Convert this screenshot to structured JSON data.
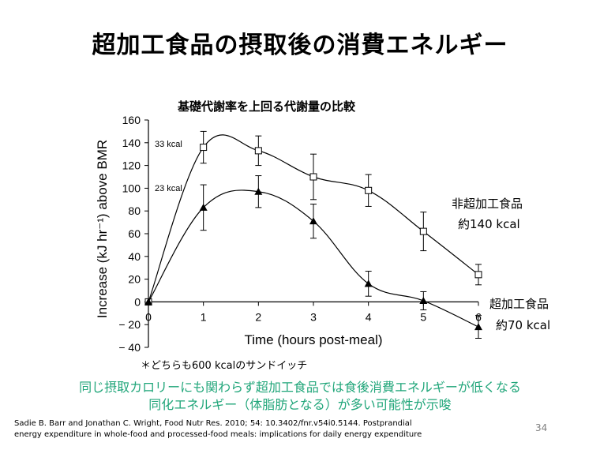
{
  "slide": {
    "title": "超加工食品の摂取後の消費エネルギー",
    "note": "＊どちらも600 kcalのサンドイッチ",
    "conclusion_line1": "同じ摂取カロリーにも関わらず超加工食品では食後消費エネルギーが低くなる",
    "conclusion_line2": "同化エネルギー（体脂肪となる）が多い可能性が示唆",
    "citation_line1": "Sadie B. Barr and Jonathan C. Wright, Food Nutr Res. 2010; 54: 10.3402/fnr.v54i0.5144. Postprandial",
    "citation_line2": "energy expenditure in whole-food and processed-food meals: implications for daily energy expenditure",
    "page_number": "34"
  },
  "chart_data": {
    "type": "line",
    "title": "基礎代謝率を上回る代謝量の比較",
    "xlabel": "Time (hours post-meal)",
    "ylabel": "Increase (kJ hr⁻¹) above BMR",
    "x": [
      0,
      1,
      2,
      3,
      4,
      5,
      6
    ],
    "xlim": [
      0,
      6
    ],
    "ylim": [
      -40,
      160
    ],
    "xticks": [
      0,
      1,
      2,
      3,
      4,
      5,
      6
    ],
    "yticks": [
      -40,
      -20,
      0,
      20,
      40,
      60,
      80,
      100,
      120,
      140,
      160
    ],
    "ytick_labels": [
      "− 40",
      "− 20",
      "0",
      "20",
      "40",
      "60",
      "80",
      "100",
      "120",
      "140",
      "160"
    ],
    "series": [
      {
        "name": "非超加工食品",
        "marker": "open-square",
        "values": [
          0,
          136,
          133,
          110,
          98,
          62,
          24
        ],
        "errors": [
          0,
          14,
          13,
          20,
          14,
          17,
          9
        ],
        "label_name": "非超加工食品",
        "label_kcal": "約140 kcal",
        "peak_label": "33 kcal"
      },
      {
        "name": "超加工食品",
        "marker": "filled-triangle",
        "values": [
          0,
          83,
          97,
          71,
          16,
          1,
          -22
        ],
        "errors": [
          0,
          20,
          14,
          15,
          11,
          8,
          10
        ],
        "label_name": "超加工食品",
        "label_kcal": "約70 kcal",
        "peak_label": "23 kcal"
      }
    ],
    "grid": false,
    "legend": "none"
  }
}
